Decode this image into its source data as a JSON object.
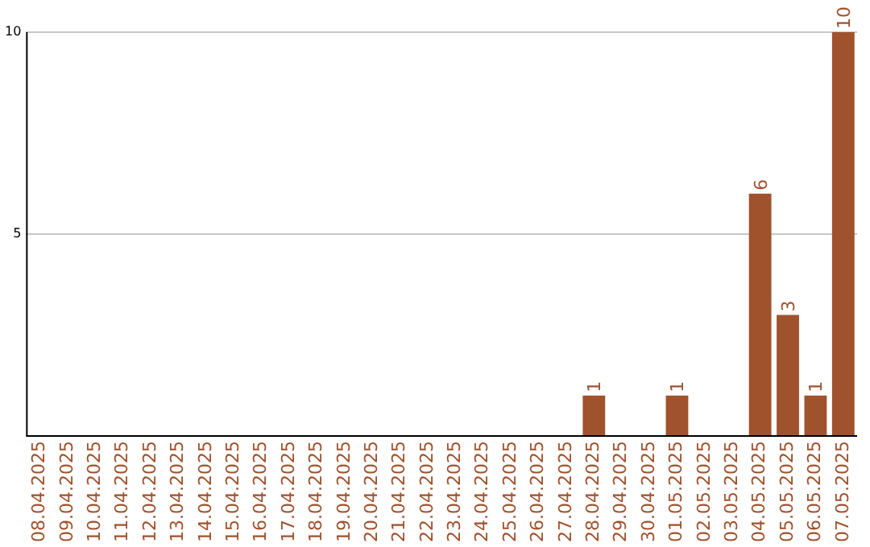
{
  "chart_data": {
    "type": "bar",
    "categories": [
      "08.04.2025",
      "09.04.2025",
      "10.04.2025",
      "11.04.2025",
      "12.04.2025",
      "13.04.2025",
      "14.04.2025",
      "15.04.2025",
      "16.04.2025",
      "17.04.2025",
      "18.04.2025",
      "19.04.2025",
      "20.04.2025",
      "21.04.2025",
      "22.04.2025",
      "23.04.2025",
      "24.04.2025",
      "25.04.2025",
      "26.04.2025",
      "27.04.2025",
      "28.04.2025",
      "29.04.2025",
      "30.04.2025",
      "01.05.2025",
      "02.05.2025",
      "03.05.2025",
      "04.05.2025",
      "05.05.2025",
      "06.05.2025",
      "07.05.2025"
    ],
    "values": [
      0,
      0,
      0,
      0,
      0,
      0,
      0,
      0,
      0,
      0,
      0,
      0,
      0,
      0,
      0,
      0,
      0,
      0,
      0,
      0,
      1,
      0,
      0,
      1,
      0,
      0,
      6,
      3,
      1,
      10
    ],
    "value_labels": [
      null,
      null,
      null,
      null,
      null,
      null,
      null,
      null,
      null,
      null,
      null,
      null,
      null,
      null,
      null,
      null,
      null,
      null,
      null,
      null,
      "1",
      null,
      null,
      "1",
      null,
      null,
      "6",
      "3",
      "1",
      "10"
    ],
    "color": "#a0522d",
    "ylim": [
      0,
      10
    ],
    "yticks": [
      {
        "value": 0,
        "label": null
      },
      5,
      10
    ],
    "grid": "y"
  }
}
